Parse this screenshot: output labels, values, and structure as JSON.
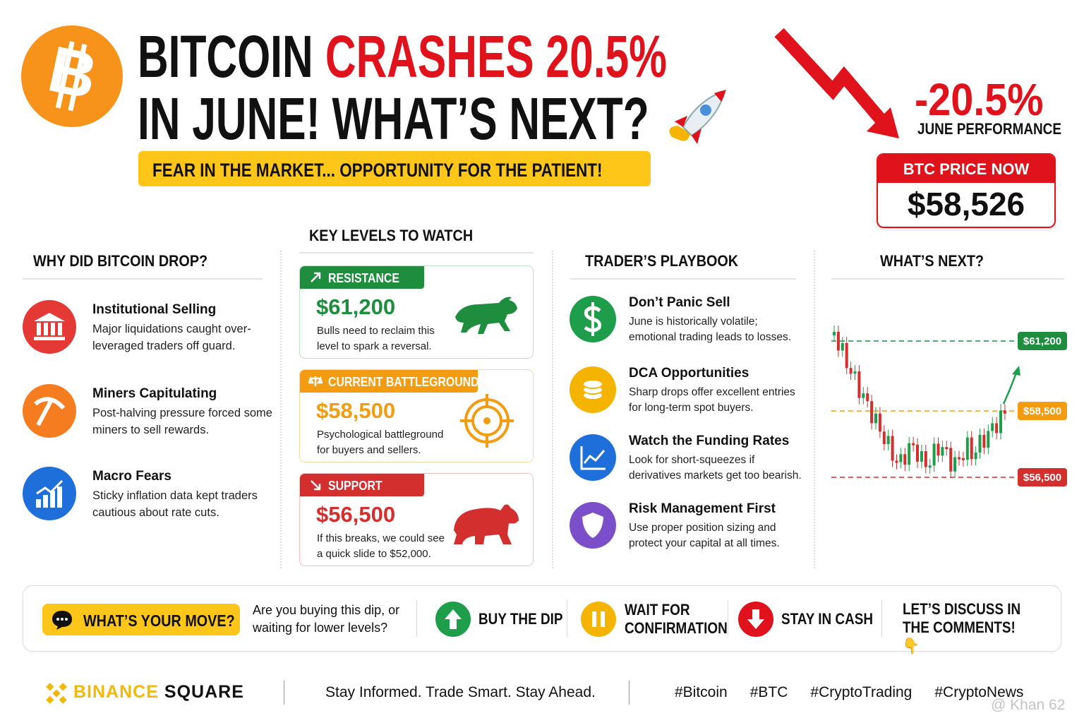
{
  "header": {
    "logo": "B",
    "title_black": "BITCOIN",
    "title_red": "CRASHES 20.5%",
    "title_line2": "IN JUNE! WHAT’S NEXT?",
    "tagline": "FEAR IN THE MARKET... OPPORTUNITY FOR THE PATIENT!"
  },
  "performance": {
    "change": "-20.5%",
    "label": "JUNE PERFORMANCE"
  },
  "price": {
    "label": "BTC PRICE NOW",
    "value": "$58,526"
  },
  "why": {
    "title": "WHY DID BITCOIN DROP?",
    "items": [
      {
        "title": "Institutional Selling",
        "text": "Major liquidations caught over-leveraged traders off guard."
      },
      {
        "title": "Miners Capitulating",
        "text": "Post-halving pressure forced some miners to sell rewards."
      },
      {
        "title": "Macro Fears",
        "text": "Sticky inflation data kept traders cautious about rate cuts."
      }
    ]
  },
  "levels": {
    "title": "KEY LEVELS TO WATCH",
    "items": [
      {
        "tag": "RESISTANCE",
        "price": "$61,200",
        "text": "Bulls need to reclaim this level to spark a reversal."
      },
      {
        "tag": "CURRENT BATTLEGROUND",
        "price": "$58,500",
        "text": "Psychological battleground for buyers and sellers."
      },
      {
        "tag": "SUPPORT",
        "price": "$56,500",
        "text": "If this breaks, we could see a quick slide to $52,000."
      }
    ]
  },
  "playbook": {
    "title": "TRADER’S PLAYBOOK",
    "items": [
      {
        "title": "Don’t Panic Sell",
        "text": "June is historically volatile; emotional trading leads to losses."
      },
      {
        "title": "DCA Opportunities",
        "text": "Sharp drops offer excellent entries for long-term spot buyers."
      },
      {
        "title": "Watch the Funding Rates",
        "text": "Look for short-squeezes if derivatives markets get too bearish."
      },
      {
        "title": "Risk Management First",
        "text": "Use proper position sizing and protect your capital at all times."
      }
    ]
  },
  "next": {
    "title": "WHAT’S NEXT?"
  },
  "poll": {
    "button": "WHAT’S YOUR MOVE?",
    "question": "Are you buying this dip, or waiting for lower levels?",
    "options": [
      "BUY THE DIP",
      "WAIT FOR CONFIRMATION",
      "STAY IN CASH"
    ],
    "cta": "LET’S DISCUSS IN THE COMMENTS! 👇"
  },
  "footer": {
    "brand_a": "BINANCE",
    "brand_b": "SQUARE",
    "slogan": "Stay Informed. Trade Smart. Stay Ahead.",
    "hashtags": [
      "#Bitcoin",
      "#BTC",
      "#CryptoTrading",
      "#CryptoNews"
    ],
    "watermark": "@ Khan 62"
  }
}
